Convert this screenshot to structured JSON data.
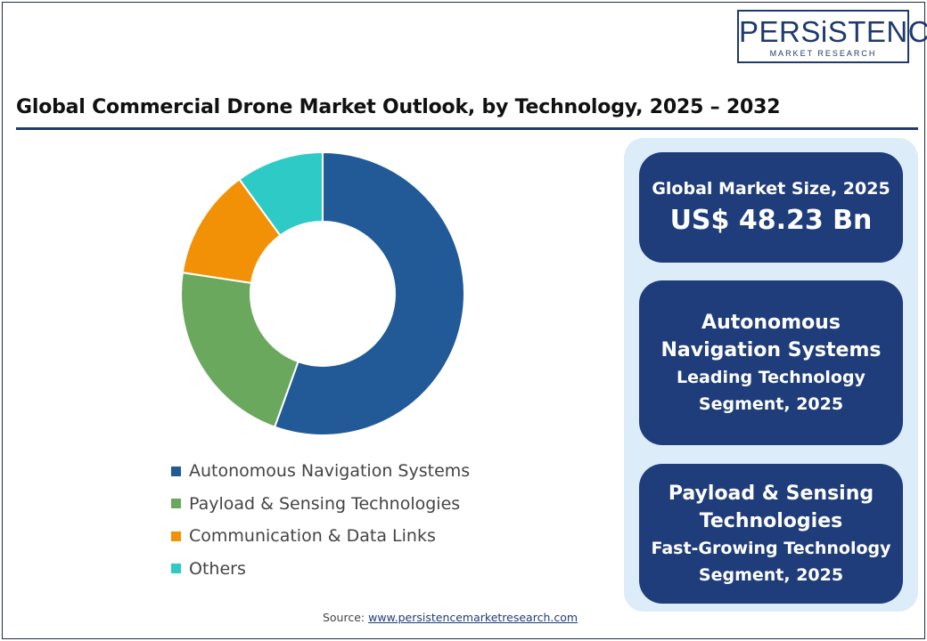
{
  "logo": {
    "main": "PERSiSTENCE",
    "sub": "MARKET RESEARCH"
  },
  "title": "Global Commercial Drone Market Outlook, by Technology, 2025 – 2032",
  "chart_data": {
    "type": "pie",
    "donut": true,
    "title": "Global Commercial Drone Market Outlook, by Technology, 2025 – 2032",
    "categories": [
      "Autonomous Navigation Systems",
      "Payload & Sensing Technologies",
      "Communication & Data Links",
      "Others"
    ],
    "values": [
      55.5,
      21.9,
      12.6,
      10.0
    ],
    "unit": "%",
    "colors": [
      "#215a97",
      "#6aa85e",
      "#f29106",
      "#2ecac5"
    ],
    "legend_position": "bottom"
  },
  "legend": [
    {
      "label": "Autonomous Navigation Systems",
      "color": "#215a97"
    },
    {
      "label": "Payload & Sensing Technologies",
      "color": "#6aa85e"
    },
    {
      "label": "Communication & Data Links",
      "color": "#f29106"
    },
    {
      "label": "Others",
      "color": "#2ecac5"
    }
  ],
  "cards": {
    "market_size": {
      "label": "Global Market Size, 2025",
      "value": "US$ 48.23 Bn"
    },
    "leading": {
      "line1": "Autonomous",
      "line2": "Navigation Systems",
      "line3": "Leading Technology",
      "line4": "Segment, 2025"
    },
    "growing": {
      "line1": "Payload & Sensing",
      "line2": "Technologies",
      "line3": "Fast-Growing Technology",
      "line4": "Segment, 2025"
    }
  },
  "source": {
    "label": "Source:",
    "link": "www.persistencemarketresearch.com"
  },
  "colors": {
    "brand": "#1f3a6e",
    "card": "#1f3d7a",
    "panel": "#dcedf9"
  }
}
